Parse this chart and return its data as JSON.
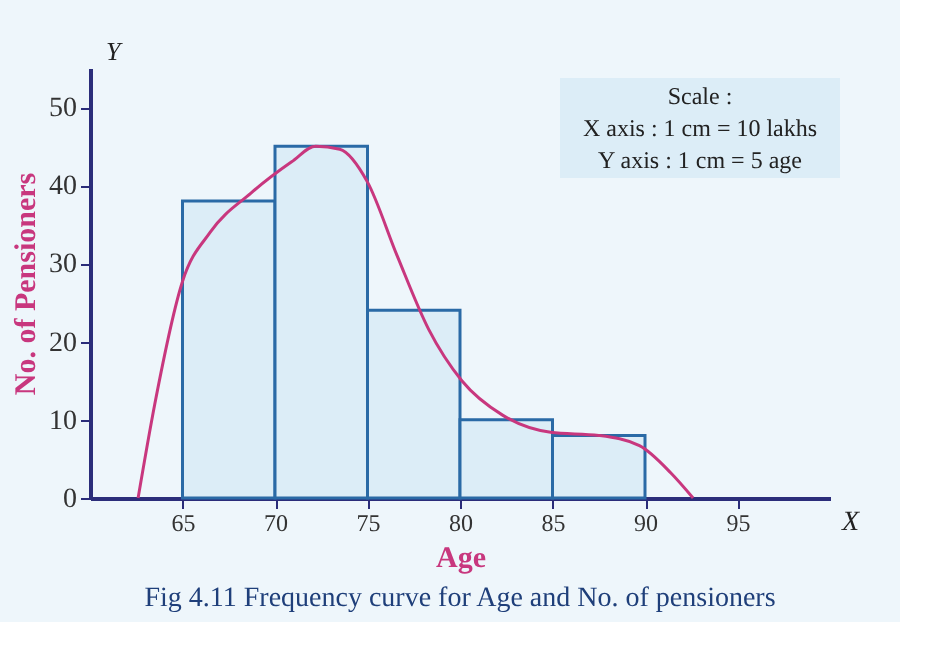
{
  "chart_data": {
    "type": "histogram",
    "xlabel": "Age",
    "ylabel": "No. of Pensioners",
    "bins": [
      65,
      70,
      75,
      80,
      85,
      90
    ],
    "values": [
      38,
      45,
      24,
      10,
      8
    ],
    "color": "#dcedf7",
    "series": [
      {
        "type": "line",
        "color": "#c8377e",
        "x": [
          62.6,
          63.5,
          65,
          66.5,
          68.7,
          70.9,
          72.2,
          73.5,
          75,
          76.6,
          78.3,
          80.1,
          82.3,
          84.9,
          87.5,
          89.7,
          91.4,
          92.6
        ],
        "values": [
          0,
          12,
          27.7,
          34,
          39,
          43,
          45,
          44.6,
          40.4,
          31,
          21.6,
          15,
          10.6,
          8.4,
          8,
          6.7,
          3.2,
          0
        ]
      }
    ],
    "xlim": [
      60,
      100
    ],
    "xticks": [
      65,
      70,
      75,
      80,
      85,
      90,
      95
    ],
    "ylim": [
      0,
      55
    ],
    "yticks": [
      0,
      10,
      20,
      30,
      40,
      50
    ],
    "grid": false,
    "annotations": [
      "Scale :",
      "X axis : 1 cm = 10 lakhs",
      "Y axis : 1 cm = 5 age",
      "Fig 4.11 Frequency curve for Age and No. of pensioners",
      "X",
      "Y"
    ]
  }
}
